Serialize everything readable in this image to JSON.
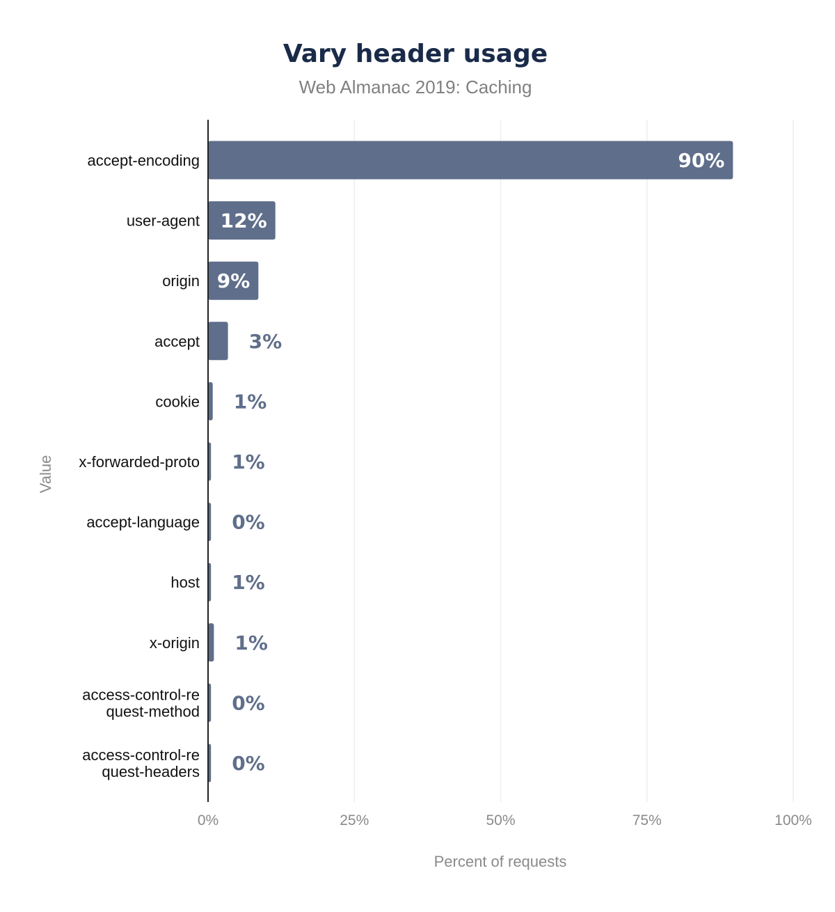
{
  "chart_data": {
    "type": "bar",
    "orientation": "horizontal",
    "title": "Vary header usage",
    "subtitle": "Web Almanac 2019: Caching",
    "xlabel": "Percent of requests",
    "ylabel": "Value",
    "xlim": [
      0,
      100
    ],
    "x_ticks": [
      "0%",
      "25%",
      "50%",
      "75%",
      "100%"
    ],
    "grid": true,
    "categories": [
      [
        "accept-encoding"
      ],
      [
        "user-agent"
      ],
      [
        "origin"
      ],
      [
        "accept"
      ],
      [
        "cookie"
      ],
      [
        "x-forwarded-proto"
      ],
      [
        "accept-language"
      ],
      [
        "host"
      ],
      [
        "x-origin"
      ],
      [
        "access-control-re",
        "quest-method"
      ],
      [
        "access-control-re",
        "quest-headers"
      ]
    ],
    "values": [
      89.7,
      11.5,
      8.6,
      3.4,
      0.8,
      0.5,
      0.5,
      0.5,
      1.0,
      0.5,
      0.5
    ],
    "data_labels": [
      "90%",
      "12%",
      "9%",
      "3%",
      "1%",
      "1%",
      "0%",
      "1%",
      "1%",
      "0%",
      "0%"
    ],
    "colors": {
      "bar": "#5f6e8a",
      "title": "#1a2b49",
      "grid": "#eeeeee",
      "axis": "#222222"
    }
  }
}
